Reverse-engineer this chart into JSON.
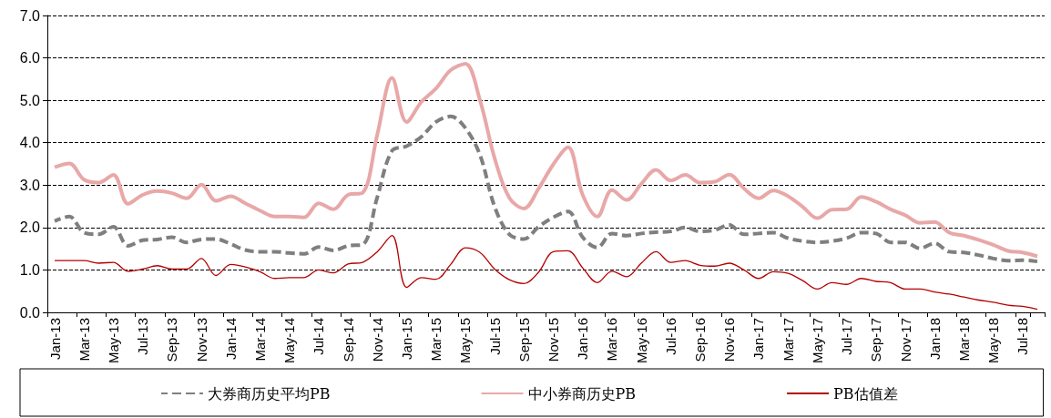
{
  "chart_data": {
    "type": "line",
    "categories": [
      "Jan-13",
      null,
      "Mar-13",
      null,
      "May-13",
      null,
      "Jul-13",
      null,
      "Sep-13",
      null,
      "Nov-13",
      null,
      "Jan-14",
      null,
      "Mar-14",
      null,
      "May-14",
      null,
      "Jul-14",
      null,
      "Sep-14",
      null,
      "Nov-14",
      null,
      "Jan-15",
      null,
      "Mar-15",
      null,
      "May-15",
      null,
      "Jul-15",
      null,
      "Sep-15",
      null,
      "Nov-15",
      null,
      "Jan-16",
      null,
      "Mar-16",
      null,
      "May-16",
      null,
      "Jul-16",
      null,
      "Sep-16",
      null,
      "Nov-16",
      null,
      "Jan-17",
      null,
      "Mar-17",
      null,
      "May-17",
      null,
      "Jul-17",
      null,
      "Sep-17",
      null,
      "Nov-17",
      null,
      "Jan-18",
      null,
      "Mar-18",
      null,
      "May-18",
      null,
      "Jul-18",
      null
    ],
    "series": [
      {
        "name": "大券商历史平均PB",
        "color": "#7f7f7f",
        "line_style": "dashed",
        "values": [
          2.15,
          2.26,
          1.88,
          1.84,
          2.02,
          1.57,
          1.7,
          1.72,
          1.77,
          1.65,
          1.72,
          1.73,
          1.61,
          1.47,
          1.43,
          1.43,
          1.4,
          1.38,
          1.54,
          1.46,
          1.57,
          1.6,
          2.72,
          3.81,
          3.92,
          4.14,
          4.49,
          4.62,
          4.35,
          3.71,
          2.49,
          1.84,
          1.73,
          2.02,
          2.24,
          2.38,
          1.77,
          1.53,
          1.86,
          1.81,
          1.86,
          1.89,
          1.91,
          2.0,
          1.91,
          1.94,
          2.06,
          1.84,
          1.86,
          1.88,
          1.75,
          1.68,
          1.65,
          1.68,
          1.75,
          1.88,
          1.86,
          1.65,
          1.65,
          1.51,
          1.63,
          1.43,
          1.41,
          1.35,
          1.27,
          1.22,
          1.23,
          1.2
        ]
      },
      {
        "name": "中小券商历史PB",
        "color": "#e8a8a8",
        "line_style": "solid",
        "values": [
          3.42,
          3.51,
          3.13,
          3.06,
          3.24,
          2.56,
          2.77,
          2.86,
          2.81,
          2.69,
          3.01,
          2.63,
          2.74,
          2.57,
          2.4,
          2.26,
          2.26,
          2.24,
          2.57,
          2.43,
          2.77,
          2.82,
          4.2,
          5.53,
          4.49,
          4.96,
          5.28,
          5.71,
          5.86,
          5.0,
          3.63,
          2.7,
          2.45,
          2.92,
          3.49,
          3.89,
          2.77,
          2.26,
          2.88,
          2.65,
          3.03,
          3.36,
          3.11,
          3.24,
          3.06,
          3.08,
          3.25,
          2.92,
          2.69,
          2.87,
          2.74,
          2.49,
          2.22,
          2.42,
          2.43,
          2.72,
          2.61,
          2.43,
          2.29,
          2.11,
          2.13,
          1.88,
          1.81,
          1.71,
          1.59,
          1.45,
          1.41,
          1.32
        ]
      },
      {
        "name": "PB估值差",
        "color": "#b40000",
        "line_style": "solid",
        "values": [
          1.22,
          1.22,
          1.22,
          1.16,
          1.18,
          0.97,
          1.02,
          1.1,
          1.02,
          1.02,
          1.27,
          0.87,
          1.13,
          1.07,
          0.96,
          0.8,
          0.82,
          0.82,
          1.0,
          0.93,
          1.14,
          1.18,
          1.43,
          1.81,
          0.59,
          0.82,
          0.78,
          1.13,
          1.52,
          1.41,
          1.02,
          0.77,
          0.68,
          0.95,
          1.43,
          1.45,
          1.05,
          0.7,
          0.97,
          0.84,
          1.16,
          1.43,
          1.18,
          1.22,
          1.11,
          1.09,
          1.16,
          1.0,
          0.8,
          0.96,
          0.92,
          0.75,
          0.55,
          0.7,
          0.66,
          0.8,
          0.73,
          0.7,
          0.55,
          0.55,
          0.48,
          0.43,
          0.36,
          0.29,
          0.24,
          0.17,
          0.14,
          0.07
        ]
      }
    ],
    "ylim": [
      0,
      7
    ],
    "yticks": [
      {
        "value": 0,
        "label": "0.0"
      },
      {
        "value": 1,
        "label": "1.0"
      },
      {
        "value": 2,
        "label": "2.0"
      },
      {
        "value": 3,
        "label": "3.0"
      },
      {
        "value": 4,
        "label": "4.0"
      },
      {
        "value": 5,
        "label": "5.0"
      },
      {
        "value": 6,
        "label": "6.0"
      },
      {
        "value": 7,
        "label": "7.0"
      }
    ],
    "grid": "y",
    "legend": "bottom",
    "marker": "none"
  }
}
